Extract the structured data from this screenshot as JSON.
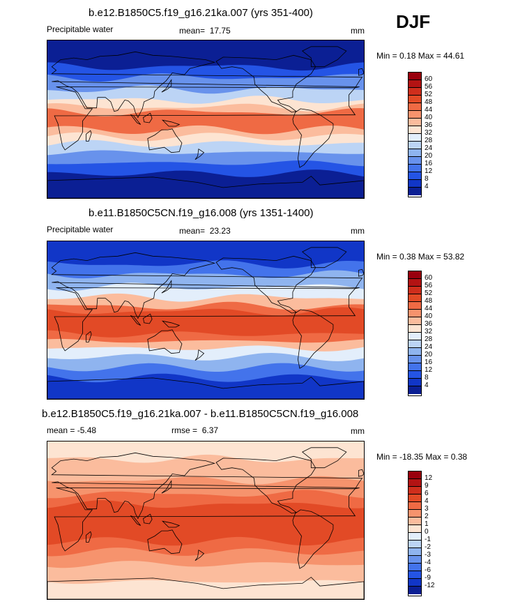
{
  "season": "DJF",
  "panels": [
    {
      "title": "b.e12.B1850C5.f19_g16.21ka.007 (yrs 351-400)",
      "left_label": "Precipitable water",
      "mean_label": "mean=",
      "mean_value": "17.75",
      "units": "mm",
      "minmax": "Min =   0.18 Max =  44.61",
      "colorbar": {
        "ticks": [
          "60",
          "56",
          "52",
          "48",
          "44",
          "40",
          "36",
          "32",
          "28",
          "24",
          "20",
          "16",
          "12",
          "8",
          "4"
        ],
        "colors": [
          "#99000d",
          "#b31313",
          "#cf2e1c",
          "#e24a26",
          "#ef6a44",
          "#f6936d",
          "#fbbc9d",
          "#fde4d2",
          "#e3eefb",
          "#bcd4f5",
          "#8fb4ef",
          "#6892ec",
          "#4373eb",
          "#2454e5",
          "#1136c7",
          "#0b1f94"
        ]
      },
      "fields": [
        {
          "level": 0,
          "lat_min": -90,
          "lat_max": 90
        },
        {
          "level": 2,
          "lat_min": -62,
          "lat_max": 60
        },
        {
          "level": 4,
          "lat_min": -50,
          "lat_max": 48
        },
        {
          "level": 6,
          "lat_min": -38,
          "lat_max": 34
        },
        {
          "level": 8,
          "lat_min": -28,
          "lat_max": 22
        },
        {
          "level": 9,
          "lat_min": -20,
          "lat_max": 14
        },
        {
          "level": 11,
          "lat_min": -12,
          "lat_max": 8
        }
      ]
    },
    {
      "title": "b.e11.B1850C5CN.f19_g16.008 (yrs 1351-1400)",
      "left_label": "Precipitable water",
      "mean_label": "mean=",
      "mean_value": "23.23",
      "units": "mm",
      "minmax": "Min =   0.38 Max =  53.82",
      "colorbar": {
        "ticks": [
          "60",
          "56",
          "52",
          "48",
          "44",
          "40",
          "36",
          "32",
          "28",
          "24",
          "20",
          "16",
          "12",
          "8",
          "4"
        ],
        "colors": [
          "#99000d",
          "#b31313",
          "#cf2e1c",
          "#e24a26",
          "#ef6a44",
          "#f6936d",
          "#fbbc9d",
          "#fde4d2",
          "#e3eefb",
          "#bcd4f5",
          "#8fb4ef",
          "#6892ec",
          "#4373eb",
          "#2454e5",
          "#1136c7",
          "#0b1f94"
        ]
      },
      "fields": [
        {
          "level": 1,
          "lat_min": -90,
          "lat_max": 90
        },
        {
          "level": 3,
          "lat_min": -66,
          "lat_max": 64
        },
        {
          "level": 5,
          "lat_min": -54,
          "lat_max": 52
        },
        {
          "level": 7,
          "lat_min": -42,
          "lat_max": 38
        },
        {
          "level": 9,
          "lat_min": -32,
          "lat_max": 26
        },
        {
          "level": 11,
          "lat_min": -24,
          "lat_max": 16
        },
        {
          "level": 12,
          "lat_min": -16,
          "lat_max": 10
        }
      ]
    },
    {
      "title": "b.e12.B1850C5.f19_g16.21ka.007 - b.e11.B1850C5CN.f19_g16.008",
      "left_label": "mean =  -5.48",
      "mean_label": "rmse =",
      "mean_value": "6.37",
      "units": "mm",
      "minmax": "Min = -18.35 Max =   0.38",
      "colorbar": {
        "ticks": [
          "12",
          "9",
          "6",
          "4",
          "3",
          "2",
          "1",
          "0",
          "-1",
          "-2",
          "-3",
          "-4",
          "-6",
          "-9",
          "-12"
        ],
        "colors": [
          "#99000d",
          "#b31313",
          "#cf2e1c",
          "#e24a26",
          "#ef6a44",
          "#f6936d",
          "#fbbc9d",
          "#fde4d2",
          "#e3eefb",
          "#bcd4f5",
          "#8fb4ef",
          "#6892ec",
          "#4373eb",
          "#2454e5",
          "#1136c7",
          "#0b1f94"
        ]
      },
      "fields": [
        {
          "level": 8,
          "lat_min": -90,
          "lat_max": 90
        },
        {
          "level": 9,
          "lat_min": -70,
          "lat_max": 70
        },
        {
          "level": 10,
          "lat_min": -50,
          "lat_max": 46
        },
        {
          "level": 11,
          "lat_min": -36,
          "lat_max": 30
        },
        {
          "level": 12,
          "lat_min": -24,
          "lat_max": 18
        }
      ]
    }
  ]
}
